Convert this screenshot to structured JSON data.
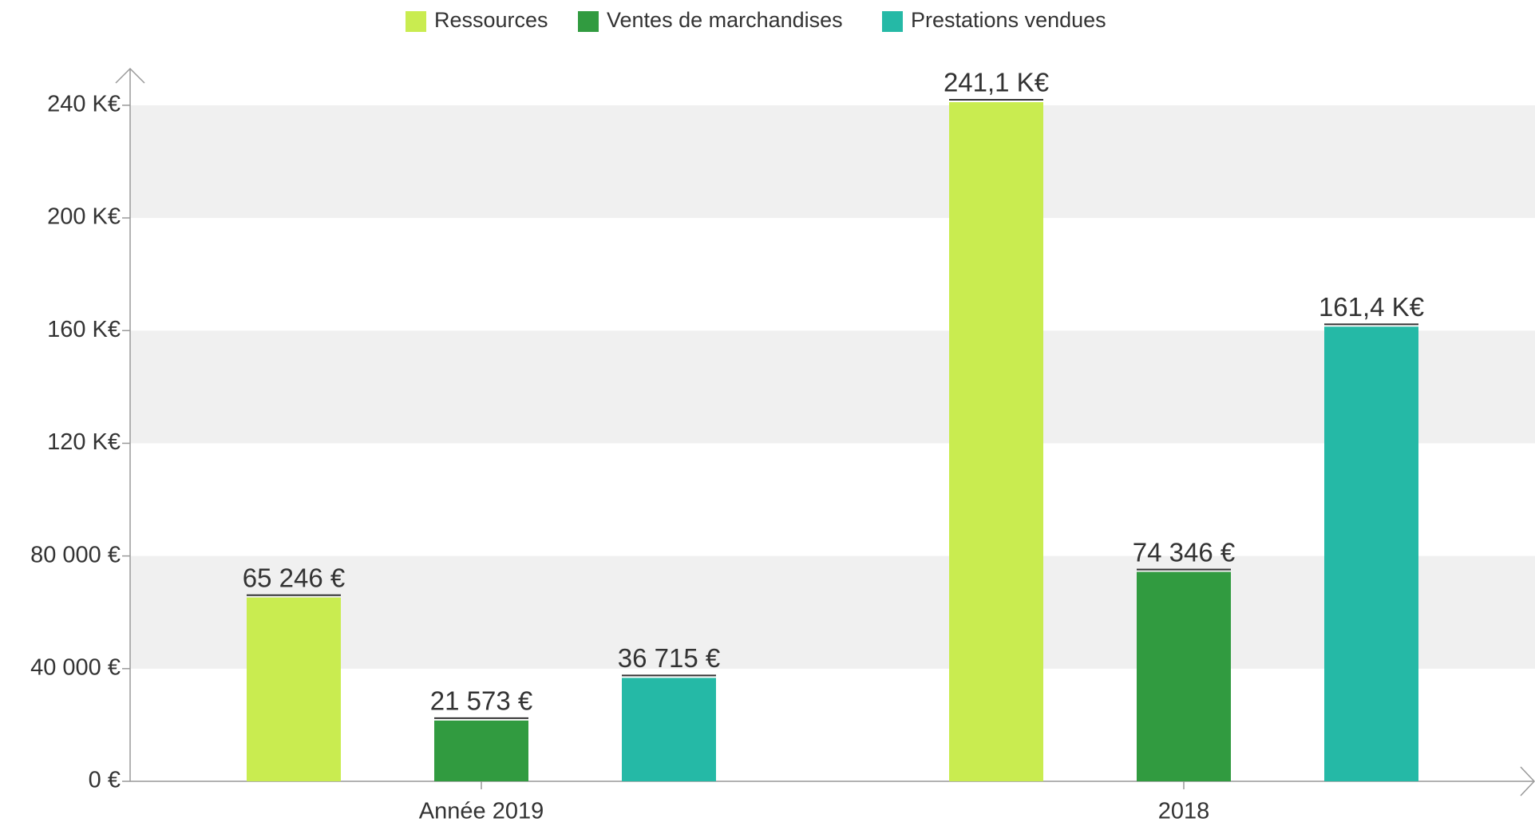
{
  "chart_data": {
    "type": "bar",
    "categories": [
      "Année 2019",
      "2018"
    ],
    "series": [
      {
        "name": "Ressources",
        "color": "#c9ec50",
        "values": [
          65246,
          241100
        ],
        "value_labels": [
          "65 246 €",
          "241,1 K€"
        ]
      },
      {
        "name": "Ventes de marchandises",
        "color": "#319b40",
        "values": [
          21573,
          74346
        ],
        "value_labels": [
          "21 573 €",
          "74 346 €"
        ]
      },
      {
        "name": "Prestations vendues",
        "color": "#25b9a6",
        "values": [
          36715,
          161400
        ],
        "value_labels": [
          "36 715 €",
          "161,4 K€"
        ]
      }
    ],
    "ylim": [
      0,
      253000
    ],
    "yticks": [
      {
        "value": 0,
        "label": "0 €"
      },
      {
        "value": 40000,
        "label": "40 000 €"
      },
      {
        "value": 80000,
        "label": "80 000 €"
      },
      {
        "value": 120000,
        "label": "120 K€"
      },
      {
        "value": 160000,
        "label": "160 K€"
      },
      {
        "value": 200000,
        "label": "200 K€"
      },
      {
        "value": 240000,
        "label": "240 K€"
      }
    ],
    "grid": true,
    "legend": "top"
  }
}
